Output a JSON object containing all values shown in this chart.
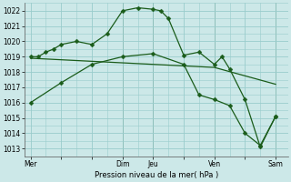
{
  "background_color": "#cce8e8",
  "grid_color": "#99cccc",
  "line_color": "#1a5c1a",
  "xlabel": "Pression niveau de la mer( hPa )",
  "ylim": [
    1012.5,
    1022.5
  ],
  "yticks": [
    1013,
    1014,
    1015,
    1016,
    1017,
    1018,
    1019,
    1020,
    1021,
    1022
  ],
  "day_labels": [
    "Mer",
    "",
    "",
    "Dim",
    "Jeu",
    "",
    "Ven",
    "",
    "Sam"
  ],
  "day_positions": [
    0,
    1,
    2,
    3,
    4,
    5,
    6,
    7,
    8
  ],
  "series1_x": [
    0,
    0.25,
    0.5,
    0.75,
    1.0,
    1.5,
    2.0,
    2.5,
    3.0,
    3.5,
    4.0,
    4.25,
    4.5,
    5.0,
    5.5,
    6.0,
    6.25,
    6.5,
    7.0,
    7.5,
    8.0
  ],
  "series1_y": [
    1019.0,
    1019.0,
    1019.3,
    1019.5,
    1019.8,
    1020.0,
    1019.8,
    1020.5,
    1022.0,
    1022.2,
    1022.1,
    1022.0,
    1021.5,
    1019.1,
    1019.3,
    1018.5,
    1019.0,
    1018.2,
    1016.2,
    1013.1,
    1015.1
  ],
  "series2_x": [
    0,
    1.0,
    2.0,
    3.0,
    4.0,
    5.0,
    5.5,
    6.0,
    6.5,
    7.0,
    7.5,
    8.0
  ],
  "series2_y": [
    1016.0,
    1017.3,
    1018.5,
    1019.0,
    1019.2,
    1018.5,
    1016.5,
    1016.2,
    1015.8,
    1014.0,
    1013.2,
    1015.1
  ],
  "series3_x": [
    0,
    2.0,
    4.0,
    6.0,
    8.0
  ],
  "series3_y": [
    1018.9,
    1018.7,
    1018.5,
    1018.3,
    1017.2
  ],
  "vline_positions": [
    3.0,
    4.0,
    6.0,
    8.0
  ],
  "xlim": [
    -0.2,
    8.4
  ]
}
